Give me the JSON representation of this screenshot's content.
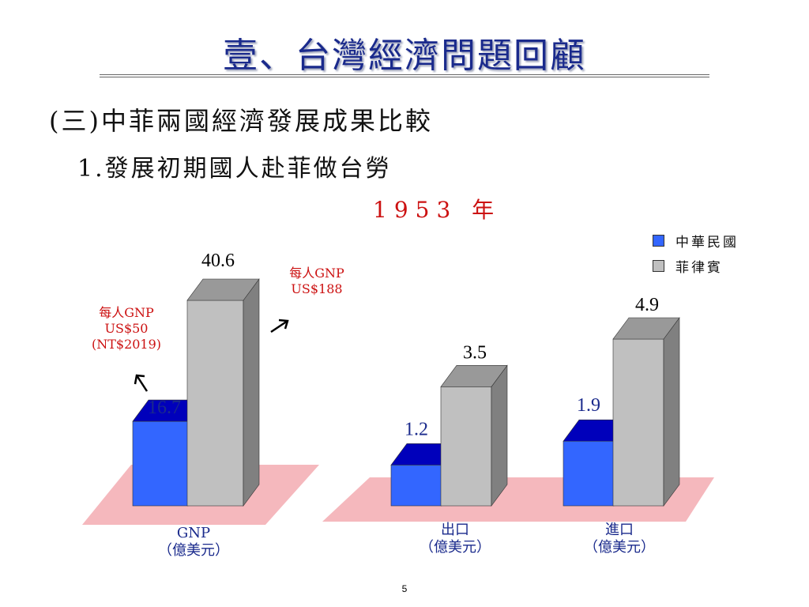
{
  "slide": {
    "title": "壹、台灣經濟問題回顧",
    "heading": "(三)中菲兩國經濟發展成果比較",
    "subheading": "1.發展初期國人赴菲做台勞",
    "year": "1953 年",
    "page_number": "5"
  },
  "annotations": {
    "roc_note": [
      "每人GNP",
      "US$50",
      "(NT$2019)"
    ],
    "ph_note": [
      "每人GNP",
      "US$188"
    ]
  },
  "colors": {
    "roc_front": "#3366ff",
    "roc_top": "#0000bb",
    "ph_front": "#c0c0c0",
    "ph_top": "#999999",
    "ph_side": "#808080",
    "floor": "#f5b8bd",
    "title": "#1a2a8c",
    "note": "#cc1111"
  },
  "chart_data": [
    {
      "type": "bar",
      "categories": [
        "GNP\n（億美元）"
      ],
      "series": [
        {
          "name": "中華民國",
          "values": [
            16.7
          ]
        },
        {
          "name": "菲律賓",
          "values": [
            40.6
          ]
        }
      ],
      "ylim": [
        0,
        45
      ]
    },
    {
      "type": "bar",
      "categories": [
        "出口\n（億美元）",
        "進口\n（億美元）"
      ],
      "series": [
        {
          "name": "中華民國",
          "values": [
            1.2,
            1.9
          ]
        },
        {
          "name": "菲律賓",
          "values": [
            3.5,
            4.9
          ]
        }
      ],
      "ylim": [
        0,
        6
      ],
      "legend": "top-right"
    }
  ]
}
